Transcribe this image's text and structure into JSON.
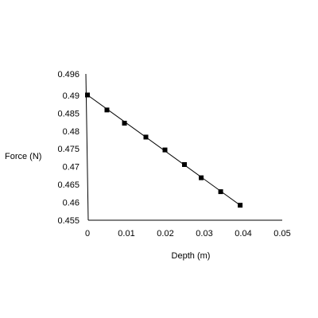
{
  "chart_data": {
    "type": "scatter",
    "title": "",
    "xlabel": "Depth (m)",
    "ylabel": "Force (N)",
    "xlim": [
      0,
      0.05
    ],
    "ylim": [
      0.455,
      0.496
    ],
    "x_ticks": [
      {
        "value": 0,
        "label": "0"
      },
      {
        "value": 0.01,
        "label": "0.01"
      },
      {
        "value": 0.02,
        "label": "0.02"
      },
      {
        "value": 0.03,
        "label": "0.03"
      },
      {
        "value": 0.04,
        "label": "0.04"
      },
      {
        "value": 0.05,
        "label": "0.05"
      }
    ],
    "y_ticks": [
      {
        "value": 0.455,
        "label": "0.455"
      },
      {
        "value": 0.46,
        "label": "0.46"
      },
      {
        "value": 0.465,
        "label": "0.465"
      },
      {
        "value": 0.47,
        "label": "0.47"
      },
      {
        "value": 0.475,
        "label": "0.475"
      },
      {
        "value": 0.48,
        "label": "0.48"
      },
      {
        "value": 0.485,
        "label": "0.485"
      },
      {
        "value": 0.49,
        "label": "0.49"
      },
      {
        "value": 0.496,
        "label": "0.496"
      }
    ],
    "grid": false,
    "legend": "none",
    "series": [
      {
        "marker": "square",
        "color": "#000000",
        "points": [
          {
            "x": 0.0,
            "y": 0.4901
          },
          {
            "x": 0.005,
            "y": 0.4859
          },
          {
            "x": 0.0095,
            "y": 0.4822
          },
          {
            "x": 0.015,
            "y": 0.4783
          },
          {
            "x": 0.0199,
            "y": 0.4747
          },
          {
            "x": 0.0249,
            "y": 0.4706
          },
          {
            "x": 0.0292,
            "y": 0.4669
          },
          {
            "x": 0.0342,
            "y": 0.463
          },
          {
            "x": 0.0392,
            "y": 0.4592
          }
        ]
      }
    ],
    "trendline": {
      "color": "#000000",
      "from": {
        "x": 0.0,
        "y": 0.4901
      },
      "to": {
        "x": 0.0392,
        "y": 0.4592
      }
    }
  }
}
